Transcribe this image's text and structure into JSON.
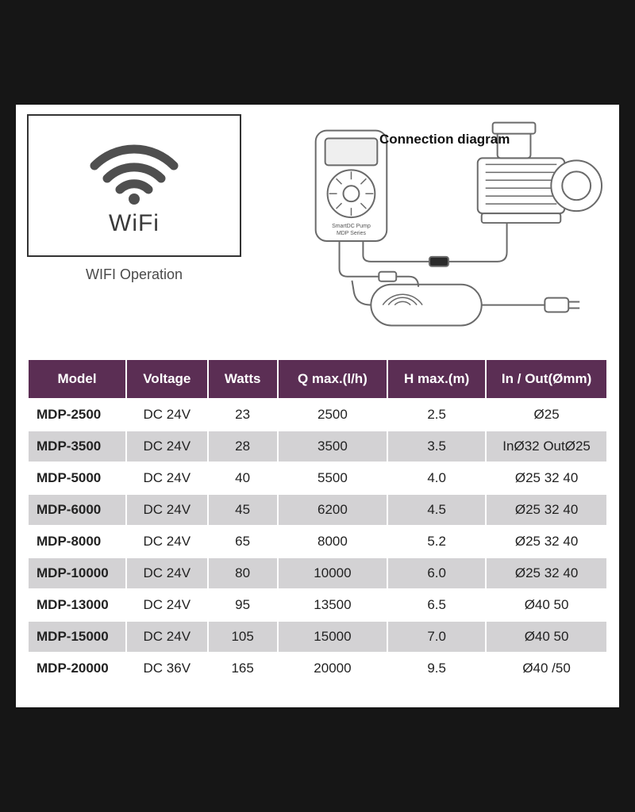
{
  "wifi": {
    "label": "WiFi",
    "caption": "WIFI  Operation",
    "icon_color": "#4f4f4f",
    "box_border": "#333333"
  },
  "diagram": {
    "title": "Connection diagram",
    "controller_text1": "SmartDC Pump",
    "controller_text2": "MDP Series",
    "stroke": "#6a6a6a",
    "fill": "#ffffff"
  },
  "table": {
    "header_bg": "#5b2e54",
    "header_fg": "#ffffff",
    "row_alt_bg": "#d3d2d4",
    "row_bg": "#ffffff",
    "columns": [
      {
        "key": "model",
        "label": "Model",
        "cls": "c-model"
      },
      {
        "key": "volt",
        "label": "Voltage",
        "cls": "c-volt"
      },
      {
        "key": "watts",
        "label": "Watts",
        "cls": "c-watt"
      },
      {
        "key": "q",
        "label": "Q  max.(l/h)",
        "cls": "c-q"
      },
      {
        "key": "h",
        "label": "H max.(m)",
        "cls": "c-h"
      },
      {
        "key": "io",
        "label": "In / Out(Ømm)",
        "cls": "c-io"
      }
    ],
    "rows": [
      {
        "model": "MDP-2500",
        "volt": "DC 24V",
        "watts": "23",
        "q": "2500",
        "h": "2.5",
        "io": "Ø25"
      },
      {
        "model": "MDP-3500",
        "volt": "DC 24V",
        "watts": "28",
        "q": "3500",
        "h": "3.5",
        "io": "InØ32 OutØ25"
      },
      {
        "model": "MDP-5000",
        "volt": "DC 24V",
        "watts": "40",
        "q": "5500",
        "h": "4.0",
        "io": "Ø25 32 40"
      },
      {
        "model": "MDP-6000",
        "volt": "DC 24V",
        "watts": "45",
        "q": "6200",
        "h": "4.5",
        "io": "Ø25 32 40"
      },
      {
        "model": "MDP-8000",
        "volt": "DC 24V",
        "watts": "65",
        "q": "8000",
        "h": "5.2",
        "io": "Ø25 32 40"
      },
      {
        "model": "MDP-10000",
        "volt": "DC 24V",
        "watts": "80",
        "q": "10000",
        "h": "6.0",
        "io": "Ø25 32 40"
      },
      {
        "model": "MDP-13000",
        "volt": "DC 24V",
        "watts": "95",
        "q": "13500",
        "h": "6.5",
        "io": "Ø40 50"
      },
      {
        "model": "MDP-15000",
        "volt": "DC 24V",
        "watts": "105",
        "q": "15000",
        "h": "7.0",
        "io": "Ø40 50"
      },
      {
        "model": "MDP-20000",
        "volt": "DC 36V",
        "watts": "165",
        "q": "20000",
        "h": "9.5",
        "io": "Ø40 /50"
      }
    ],
    "banding": [
      "a",
      "b",
      "a",
      "b",
      "a",
      "b",
      "a",
      "b",
      "a"
    ]
  }
}
